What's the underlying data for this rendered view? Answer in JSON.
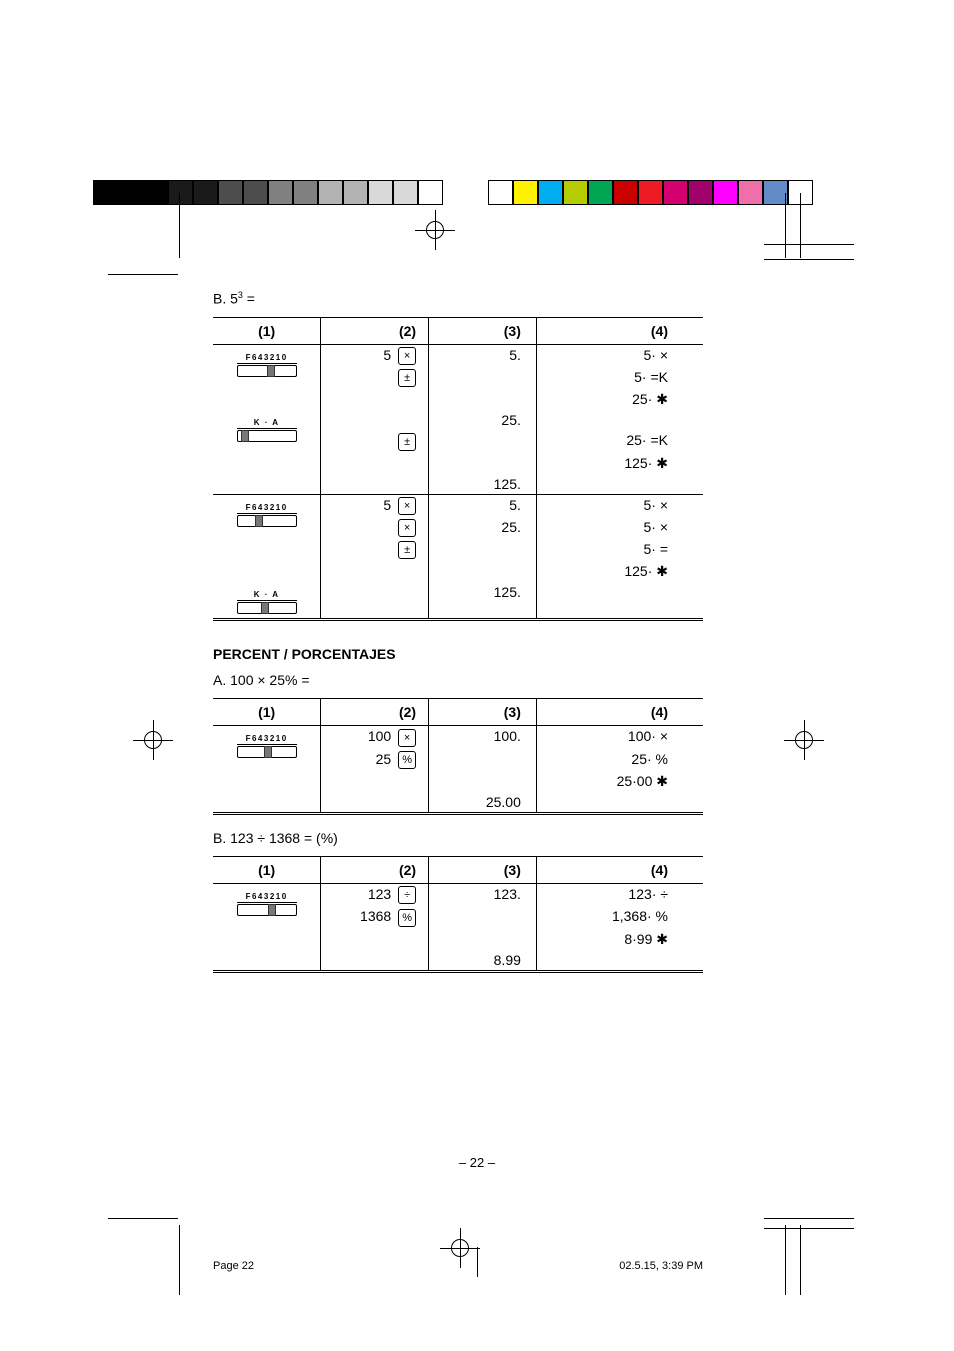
{
  "color_bars": {
    "bar1": [
      "#000000",
      "#000000",
      "#000000",
      "#1a1a1a",
      "#1a1a1a",
      "#4d4d4d",
      "#4d4d4d",
      "#808080",
      "#808080",
      "#b3b3b3",
      "#b3b3b3",
      "#d9d9d9",
      "#d9d9d9",
      "#ffffff"
    ],
    "bar2": [
      "#ffffff",
      "#fff200",
      "#00aeef",
      "#b5cc00",
      "#00a651",
      "#c80000",
      "#ed1c24",
      "#d40070",
      "#a0006a",
      "#ff00ff",
      "#f06eaa",
      "#638bc8",
      "#ffffff"
    ]
  },
  "headings": {
    "b1_prefix": "B.  5",
    "b1_sup": "3",
    "b1_suffix": " =",
    "section_percent": "PERCENT / PORCENTAJES",
    "a2": "A.  100 × 25% =",
    "b2": "B.  123 ÷ 1368 = (%)"
  },
  "cols": {
    "c1": "(1)",
    "c2": "(2)",
    "c3": "(3)",
    "c4": "(4)"
  },
  "table1": {
    "r1": {
      "slider_label": "F643210",
      "slider_pos": "55%",
      "inp": "5",
      "key1": "×",
      "col3": "5.",
      "col4": "5· ×"
    },
    "r2": {
      "key1": "=",
      "col4": "5· =K"
    },
    "r3": {
      "col4": "25· ✱"
    },
    "r4": {
      "slider_label": "K · A",
      "slider_pos": "5%",
      "col3": "25."
    },
    "r5": {
      "key1": "=",
      "col4": "25· =K"
    },
    "r6": {
      "col4": "125· ✱"
    },
    "r7": {
      "col3": "125."
    },
    "r8": {
      "slider_label": "F643210",
      "slider_pos": "30%",
      "inp": "5",
      "key1": "×",
      "col3": "5.",
      "col4": "5· ×"
    },
    "r9": {
      "key1": "×",
      "col3": "25.",
      "col4": "5· ×"
    },
    "r10": {
      "key1": "=",
      "col4": "5· ="
    },
    "r11": {
      "col4": "125· ✱"
    },
    "r12": {
      "slider_label": "K · A",
      "slider_pos": "40%",
      "col3": "125."
    }
  },
  "table2": {
    "r1": {
      "slider_label": "F643210",
      "slider_pos": "45%",
      "inp1": "100",
      "key1": "×",
      "col3": "100.",
      "col4": "100· ×"
    },
    "r2": {
      "inp1": "25",
      "key1": "%",
      "col4": "25· %"
    },
    "r3": {
      "col4": "25·00 ✱"
    },
    "r4": {
      "col3": "25.00"
    }
  },
  "table3": {
    "r1": {
      "slider_label": "F643210",
      "slider_pos": "52%",
      "inp1": "123",
      "key1": "÷",
      "col3": "123.",
      "col4": "123· ÷"
    },
    "r2": {
      "inp1": "1368",
      "key1": "%",
      "col4": "1,368· %"
    },
    "r3": {
      "col4": "8·99 ✱"
    },
    "r4": {
      "col3": "8.99"
    }
  },
  "page_number": "– 22 –",
  "footer": {
    "left": "Page 22",
    "right": "02.5.15, 3:39 PM"
  }
}
